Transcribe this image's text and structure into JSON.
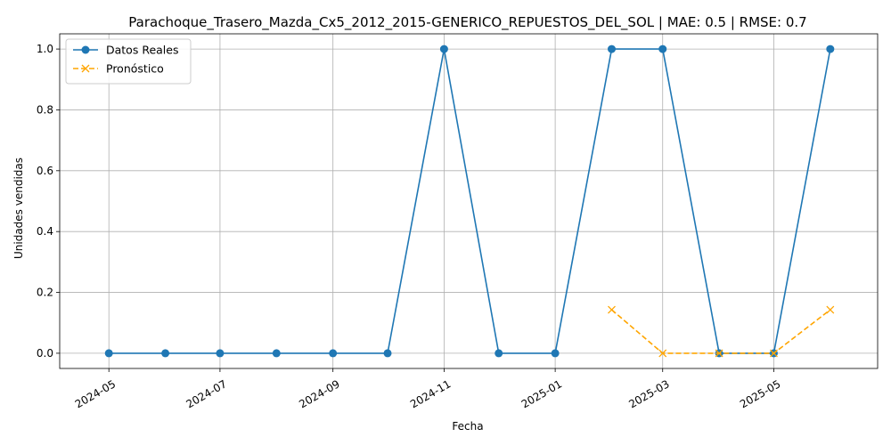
{
  "chart_data": {
    "type": "line",
    "title": "Parachoque_Trasero_Mazda_Cx5_2012_2015-GENERICO_REPUESTOS_DEL_SOL | MAE: 0.5 | RMSE: 0.7",
    "xlabel": "Fecha",
    "ylabel": "Unidades vendidas",
    "x_ticks": [
      "2024-05",
      "2024-07",
      "2024-09",
      "2024-11",
      "2025-01",
      "2025-03",
      "2025-05"
    ],
    "y_ticks": [
      "0.0",
      "0.2",
      "0.4",
      "0.6",
      "0.8",
      "1.0"
    ],
    "ylim": [
      -0.05,
      1.05
    ],
    "xlim": [
      "2024-04-04",
      "2025-06-27"
    ],
    "grid": true,
    "legend_position": "top-left",
    "series": [
      {
        "name": "Datos Reales",
        "color": "#1f77b4",
        "marker": "circle",
        "linestyle": "solid",
        "x": [
          "2024-05-01",
          "2024-06-01",
          "2024-07-01",
          "2024-08-01",
          "2024-09-01",
          "2024-10-01",
          "2024-11-01",
          "2024-12-01",
          "2025-01-01",
          "2025-02-01",
          "2025-03-01",
          "2025-04-01",
          "2025-05-01",
          "2025-06-01"
        ],
        "values": [
          0,
          0,
          0,
          0,
          0,
          0,
          1,
          0,
          0,
          1,
          1,
          0,
          0,
          1
        ]
      },
      {
        "name": "Pronóstico",
        "color": "#ffa500",
        "marker": "x",
        "linestyle": "dashed",
        "x": [
          "2025-02-01",
          "2025-03-01",
          "2025-04-01",
          "2025-05-01",
          "2025-06-01"
        ],
        "values": [
          0.143,
          0,
          0,
          0,
          0.143
        ]
      }
    ]
  }
}
